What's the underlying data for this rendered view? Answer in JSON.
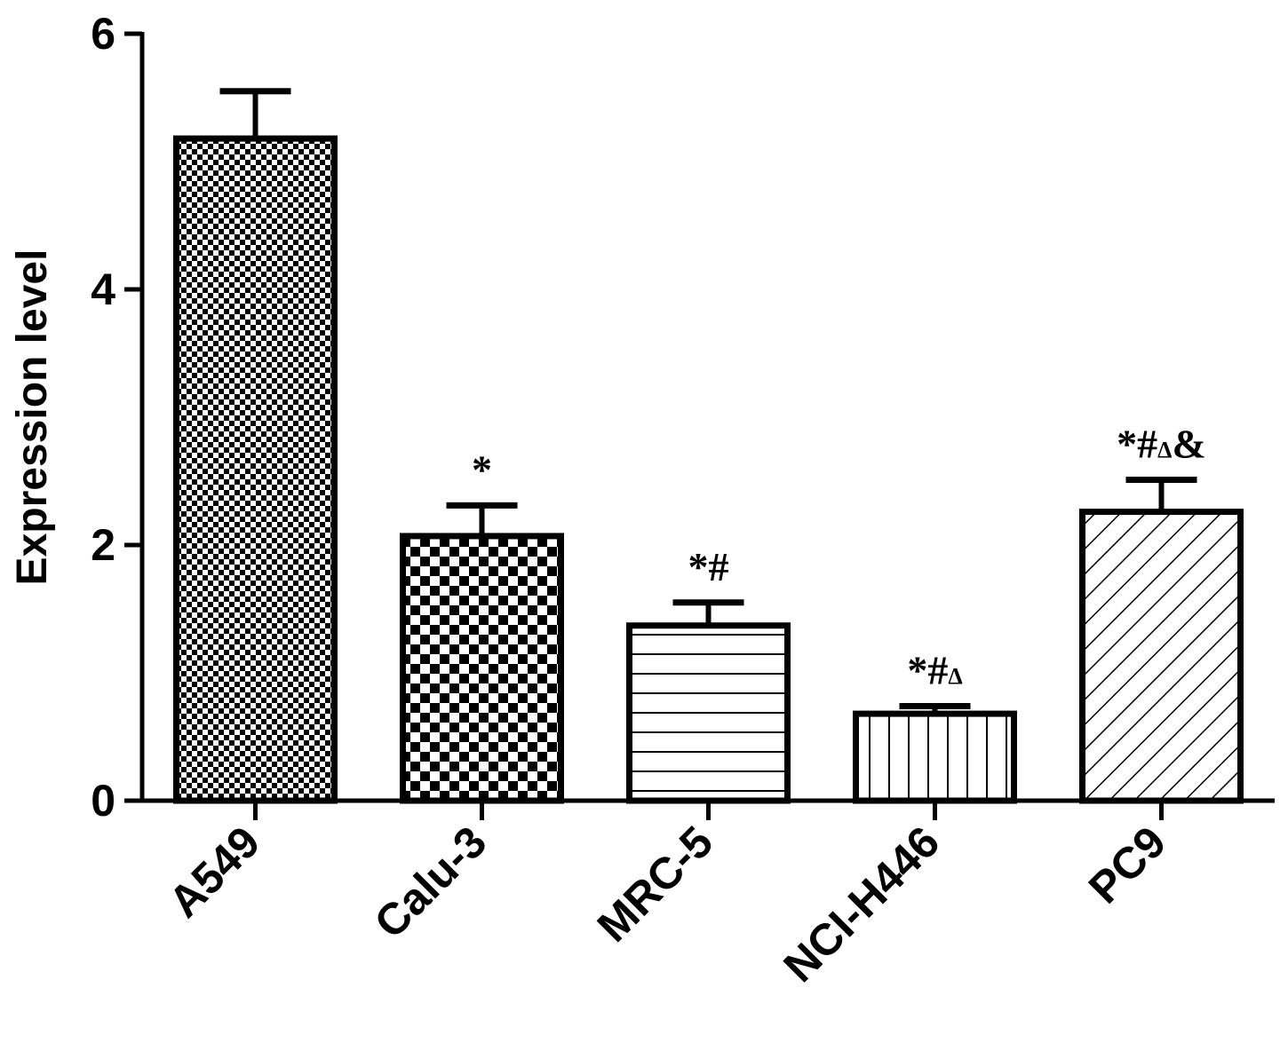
{
  "chart_data": {
    "type": "bar",
    "ylabel": "Expression level",
    "ylim": [
      0,
      6
    ],
    "yticks": [
      0,
      2,
      4,
      6
    ],
    "categories": [
      "A549",
      "Calu-3",
      "MRC-5",
      "NCI-H446",
      "PC9"
    ],
    "values": [
      5.18,
      2.07,
      1.37,
      0.68,
      2.26
    ],
    "errors": [
      0.37,
      0.24,
      0.18,
      0.06,
      0.25
    ],
    "annotations": [
      "",
      "*",
      "*#",
      "*#Δ",
      "*#Δ&"
    ],
    "patterns": [
      "fine-checker",
      "checker",
      "horizontal-lines",
      "vertical-lines",
      "diagonal-lines"
    ],
    "colors": {
      "stroke": "#000000",
      "fill": "#ffffff"
    }
  }
}
